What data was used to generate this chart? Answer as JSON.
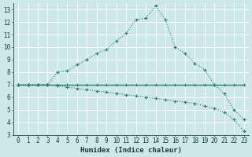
{
  "xlabel": "Humidex (Indice chaleur)",
  "background_color": "#cde8ea",
  "grid_color": "#ffffff",
  "line_color": "#2e7d6e",
  "xlim": [
    -0.5,
    23.5
  ],
  "ylim": [
    3,
    13.5
  ],
  "xticks": [
    0,
    1,
    2,
    3,
    4,
    5,
    6,
    7,
    8,
    9,
    10,
    11,
    12,
    13,
    14,
    15,
    16,
    17,
    18,
    19,
    20,
    21,
    22,
    23
  ],
  "yticks": [
    3,
    4,
    5,
    6,
    7,
    8,
    9,
    10,
    11,
    12,
    13
  ],
  "line1_x": [
    0,
    1,
    2,
    3,
    4,
    5,
    6,
    7,
    8,
    9,
    10,
    11,
    12,
    13,
    14,
    15,
    16,
    17,
    18,
    19,
    20,
    21,
    22,
    23
  ],
  "line1_y": [
    7.0,
    7.0,
    7.0,
    7.0,
    7.0,
    7.0,
    7.0,
    7.0,
    7.0,
    7.0,
    7.0,
    7.0,
    7.0,
    7.0,
    7.0,
    7.0,
    7.0,
    7.0,
    7.0,
    7.0,
    7.0,
    7.0,
    7.0,
    7.0
  ],
  "line2_x": [
    0,
    1,
    2,
    3,
    4,
    5,
    6,
    7,
    8,
    9,
    10,
    11,
    12,
    13,
    14,
    15,
    16,
    17,
    18,
    19,
    20,
    21,
    22,
    23
  ],
  "line2_y": [
    7.0,
    7.0,
    7.0,
    7.0,
    8.0,
    8.1,
    8.6,
    9.0,
    9.5,
    9.8,
    10.5,
    11.1,
    12.2,
    12.3,
    13.3,
    12.2,
    10.0,
    9.5,
    8.7,
    8.2,
    7.0,
    6.3,
    5.0,
    4.2
  ],
  "line3_x": [
    0,
    1,
    2,
    3,
    4,
    5,
    6,
    7,
    8,
    9,
    10,
    11,
    12,
    13,
    14,
    15,
    16,
    17,
    18,
    19,
    20,
    21,
    22,
    23
  ],
  "line3_y": [
    7.0,
    7.0,
    7.0,
    7.0,
    6.9,
    6.8,
    6.7,
    6.6,
    6.5,
    6.4,
    6.3,
    6.2,
    6.1,
    6.0,
    5.9,
    5.8,
    5.7,
    5.6,
    5.5,
    5.3,
    5.1,
    4.8,
    4.2,
    3.3
  ]
}
